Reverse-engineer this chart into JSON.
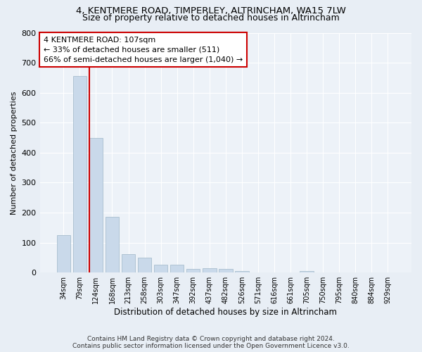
{
  "title1": "4, KENTMERE ROAD, TIMPERLEY, ALTRINCHAM, WA15 7LW",
  "title2": "Size of property relative to detached houses in Altrincham",
  "xlabel": "Distribution of detached houses by size in Altrincham",
  "ylabel": "Number of detached properties",
  "footer1": "Contains HM Land Registry data © Crown copyright and database right 2024.",
  "footer2": "Contains public sector information licensed under the Open Government Licence v3.0.",
  "bin_labels": [
    "34sqm",
    "79sqm",
    "124sqm",
    "168sqm",
    "213sqm",
    "258sqm",
    "303sqm",
    "347sqm",
    "392sqm",
    "437sqm",
    "482sqm",
    "526sqm",
    "571sqm",
    "616sqm",
    "661sqm",
    "705sqm",
    "750sqm",
    "795sqm",
    "840sqm",
    "884sqm",
    "929sqm"
  ],
  "bar_heights": [
    125,
    655,
    450,
    185,
    62,
    50,
    27,
    27,
    13,
    15,
    12,
    5,
    0,
    0,
    0,
    5,
    0,
    0,
    0,
    0,
    0
  ],
  "bar_color": "#c9d9ea",
  "bar_edge_color": "#a8bece",
  "property_line_x": 1.58,
  "annotation_text": "4 KENTMERE ROAD: 107sqm\n← 33% of detached houses are smaller (511)\n66% of semi-detached houses are larger (1,040) →",
  "annotation_box_color": "white",
  "annotation_box_edge_color": "#cc0000",
  "vline_color": "#cc0000",
  "ylim": [
    0,
    800
  ],
  "yticks": [
    0,
    100,
    200,
    300,
    400,
    500,
    600,
    700,
    800
  ],
  "background_color": "#e8eef5",
  "plot_background_color": "#edf2f8",
  "grid_color": "white",
  "title1_fontsize": 9.5,
  "title2_fontsize": 9.0
}
